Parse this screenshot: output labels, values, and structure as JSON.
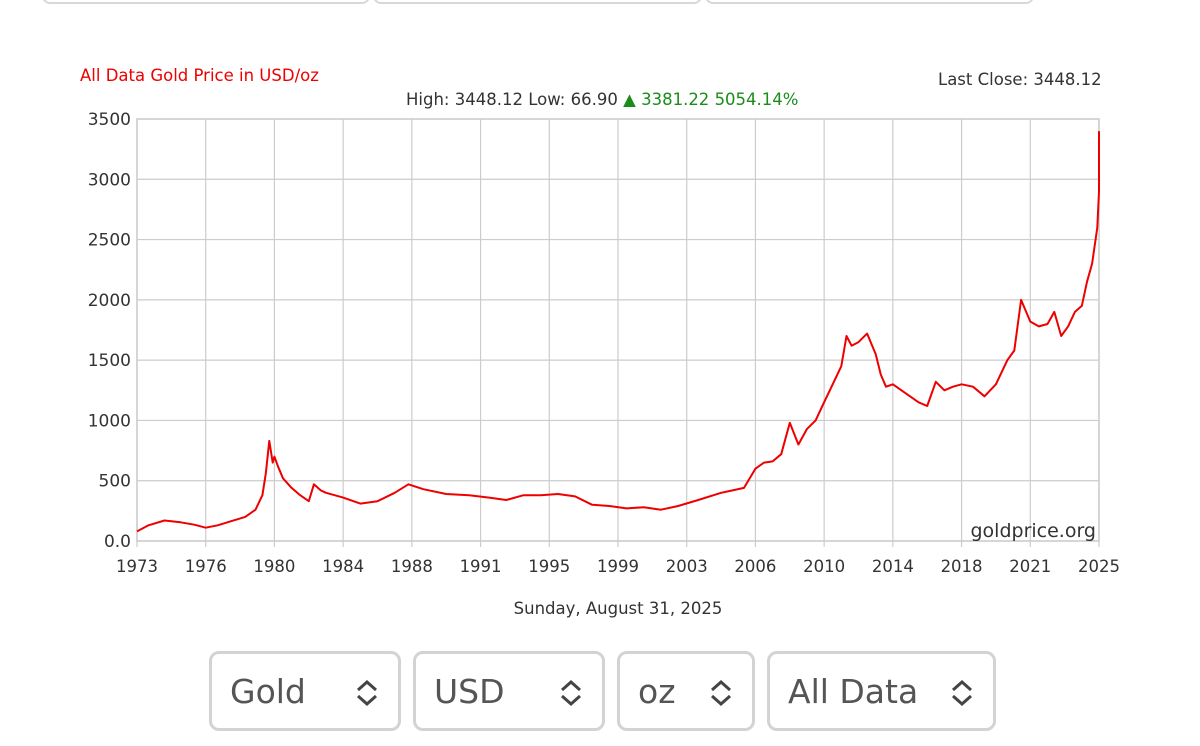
{
  "chart_data": {
    "type": "line",
    "title": "All Data Gold Price in USD/oz",
    "stats": {
      "high_label": "High:",
      "high": "3448.12",
      "low_label": "Low:",
      "low": "66.90",
      "change_arrow": "▲",
      "change": "3381.22",
      "change_pct": "5054.14%"
    },
    "last_close_label": "Last Close:",
    "last_close": "3448.12",
    "watermark": "goldprice.org",
    "date_label": "Sunday, August 31, 2025",
    "xlabel": "",
    "ylabel": "",
    "x_ticks": [
      "1973",
      "1976",
      "1980",
      "1984",
      "1988",
      "1991",
      "1995",
      "1999",
      "2003",
      "2006",
      "2010",
      "2014",
      "2018",
      "2021",
      "2025"
    ],
    "y_ticks": [
      "0.0",
      "500",
      "1000",
      "1500",
      "2000",
      "2500",
      "3000",
      "3500"
    ],
    "ylim": [
      0,
      3500
    ],
    "grid": true,
    "series": [
      {
        "color": "#ee0000",
        "x": [
          1973.0,
          1973.5,
          1974.2,
          1974.9,
          1975.5,
          1976.0,
          1976.7,
          1977.5,
          1978.3,
          1978.9,
          1979.3,
          1979.5,
          1979.7,
          1979.9,
          1980.0,
          1980.2,
          1980.5,
          1981.0,
          1981.5,
          1982.0,
          1982.3,
          1982.7,
          1983.0,
          1983.5,
          1984.0,
          1985.0,
          1986.0,
          1987.0,
          1987.8,
          1988.5,
          1989.5,
          1990.5,
          1991.5,
          1992.5,
          1993.5,
          1994.5,
          1995.5,
          1996.5,
          1997.5,
          1998.5,
          1999.5,
          2000.5,
          2001.5,
          2002.5,
          2003.5,
          2004.5,
          2005.0,
          2005.5,
          2006.0,
          2006.5,
          2007.0,
          2007.5,
          2008.0,
          2008.5,
          2009.0,
          2009.5,
          2010.0,
          2010.5,
          2011.0,
          2011.3,
          2011.6,
          2012.0,
          2012.5,
          2013.0,
          2013.3,
          2013.6,
          2014.0,
          2014.5,
          2015.0,
          2015.5,
          2016.0,
          2016.5,
          2017.0,
          2017.5,
          2018.0,
          2018.5,
          2019.0,
          2019.5,
          2020.0,
          2020.3,
          2020.6,
          2021.0,
          2021.5,
          2022.0,
          2022.4,
          2022.8,
          2023.2,
          2023.6,
          2024.0,
          2024.3,
          2024.6,
          2024.9,
          2025.2,
          2025.5,
          2025.7
        ],
        "y": [
          80,
          130,
          170,
          155,
          135,
          110,
          130,
          165,
          200,
          260,
          380,
          560,
          830,
          650,
          700,
          620,
          520,
          440,
          380,
          330,
          470,
          420,
          400,
          380,
          360,
          310,
          330,
          400,
          470,
          430,
          390,
          380,
          360,
          340,
          380,
          380,
          390,
          370,
          300,
          290,
          270,
          280,
          260,
          290,
          340,
          400,
          420,
          440,
          600,
          650,
          660,
          720,
          980,
          800,
          930,
          1000,
          1150,
          1300,
          1450,
          1700,
          1620,
          1650,
          1720,
          1550,
          1380,
          1280,
          1300,
          1250,
          1200,
          1150,
          1120,
          1320,
          1250,
          1280,
          1300,
          1280,
          1200,
          1300,
          1500,
          1580,
          2000,
          1820,
          1780,
          1800,
          1900,
          1700,
          1780,
          1900,
          1950,
          2150,
          2300,
          2600,
          2900,
          3200,
          3400
        ]
      }
    ]
  },
  "selectors": {
    "metal": "Gold",
    "currency": "USD",
    "unit": "oz",
    "range": "All Data"
  }
}
